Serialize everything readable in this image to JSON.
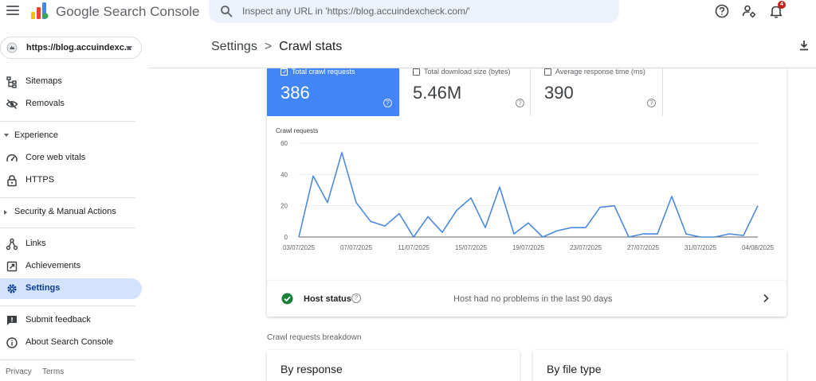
{
  "header": {
    "product_name": "Google Search Console",
    "search_placeholder": "Inspect any URL in 'https://blog.accuindexcheck.com/'",
    "notifications_count": "4",
    "icons": [
      "menu-icon",
      "help-icon",
      "account-settings-icon",
      "bell-icon"
    ]
  },
  "sidebar": {
    "property": "https://blog.accuindexc...",
    "items": [
      {
        "label": "Sitemaps",
        "icon": "sitemap-icon"
      },
      {
        "label": "Removals",
        "icon": "eye-off-icon"
      },
      {
        "label": "Experience",
        "section": true,
        "expanded": true
      },
      {
        "label": "Core web vitals",
        "icon": "gauge-icon"
      },
      {
        "label": "HTTPS",
        "icon": "lock-icon"
      },
      {
        "label": "Security & Manual Actions",
        "section": true,
        "expanded": false
      },
      {
        "label": "Links",
        "icon": "links-icon"
      },
      {
        "label": "Achievements",
        "icon": "achievement-icon"
      },
      {
        "label": "Settings",
        "icon": "gear-icon",
        "active": true
      },
      {
        "label": "Submit feedback",
        "icon": "feedback-icon"
      },
      {
        "label": "About Search Console",
        "icon": "info-icon"
      }
    ],
    "footer": {
      "privacy": "Privacy",
      "terms": "Terms"
    }
  },
  "breadcrumb": {
    "parent": "Settings",
    "separator": ">",
    "current": "Crawl stats"
  },
  "metrics": [
    {
      "label": "Total crawl requests",
      "value": "386",
      "selected": true
    },
    {
      "label": "Total download size (bytes)",
      "value": "5.46M",
      "selected": false
    },
    {
      "label": "Average response time (ms)",
      "value": "390",
      "selected": false
    }
  ],
  "host_status": {
    "label": "Host status",
    "message": "Host had no problems in the last 90 days"
  },
  "breakdown": {
    "title": "Crawl requests breakdown",
    "by_response": "By response",
    "by_file_type": "By file type"
  },
  "colors": {
    "accent": "#4285f4",
    "active_nav": "#d3e3fd",
    "ok": "#188038"
  },
  "chart_data": {
    "type": "line",
    "title": "Crawl requests",
    "ylim": [
      0,
      60
    ],
    "yticks": [
      0,
      20,
      40,
      60
    ],
    "xticks": [
      "03/07/2025",
      "07/07/2025",
      "11/07/2025",
      "15/07/2025",
      "19/07/2025",
      "23/07/2025",
      "27/07/2025",
      "31/07/2025",
      "04/08/2025"
    ],
    "x": [
      "03/07/2025",
      "04/07/2025",
      "05/07/2025",
      "06/07/2025",
      "07/07/2025",
      "08/07/2025",
      "09/07/2025",
      "10/07/2025",
      "11/07/2025",
      "12/07/2025",
      "13/07/2025",
      "14/07/2025",
      "15/07/2025",
      "16/07/2025",
      "17/07/2025",
      "18/07/2025",
      "19/07/2025",
      "20/07/2025",
      "21/07/2025",
      "22/07/2025",
      "23/07/2025",
      "24/07/2025",
      "25/07/2025",
      "26/07/2025",
      "27/07/2025",
      "28/07/2025",
      "29/07/2025",
      "30/07/2025",
      "31/07/2025",
      "01/08/2025",
      "02/08/2025",
      "03/08/2025",
      "04/08/2025"
    ],
    "series": [
      {
        "values": [
          0,
          39,
          22,
          54,
          22,
          10,
          7,
          15,
          0,
          13,
          3,
          17,
          25,
          6,
          32,
          2,
          9,
          0,
          4,
          6,
          6,
          19,
          20,
          0,
          2,
          2,
          26,
          2,
          0,
          0,
          2,
          1,
          20
        ]
      }
    ],
    "grid": true,
    "line_color": "#4a89dc"
  }
}
